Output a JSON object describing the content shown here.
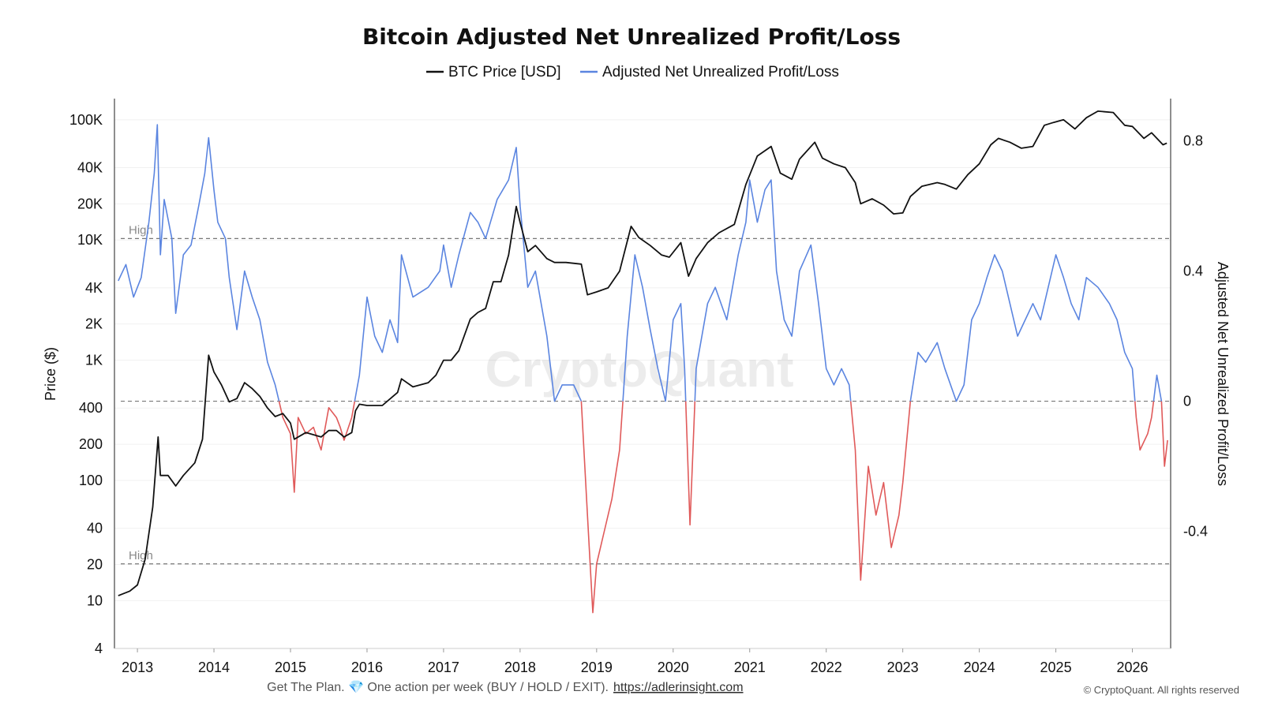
{
  "title": "Bitcoin Adjusted Net Unrealized Profit/Loss",
  "legend": [
    {
      "label": "BTC Price [USD]",
      "color": "#111111"
    },
    {
      "label": "Adjusted Net Unrealized Profit/Loss",
      "color": "#5b85e0"
    }
  ],
  "watermark": "CryptoQuant",
  "footer": {
    "text": "Get The Plan. 💎 One action per week (BUY / HOLD / EXIT).",
    "link": "https://adlerinsight.com",
    "copyright": "© CryptoQuant. All rights reserved"
  },
  "chart_data": {
    "type": "line",
    "title": "Bitcoin Adjusted Net Unrealized Profit/Loss",
    "x_range": [
      2012.7,
      2026.5
    ],
    "x_ticks": [
      "2013",
      "2014",
      "2015",
      "2016",
      "2017",
      "2018",
      "2019",
      "2020",
      "2021",
      "2022",
      "2023",
      "2024",
      "2025",
      "2026"
    ],
    "left_axis": {
      "label": "Price ($)",
      "scale": "log",
      "range": [
        4,
        150000
      ],
      "ticks": [
        {
          "value": 4,
          "label": "4"
        },
        {
          "value": 10,
          "label": "10"
        },
        {
          "value": 20,
          "label": "20"
        },
        {
          "value": 40,
          "label": "40"
        },
        {
          "value": 100,
          "label": "100"
        },
        {
          "value": 200,
          "label": "200"
        },
        {
          "value": 400,
          "label": "400"
        },
        {
          "value": 1000,
          "label": "1K"
        },
        {
          "value": 2000,
          "label": "2K"
        },
        {
          "value": 4000,
          "label": "4K"
        },
        {
          "value": 10000,
          "label": "10K"
        },
        {
          "value": 20000,
          "label": "20K"
        },
        {
          "value": 40000,
          "label": "40K"
        },
        {
          "value": 100000,
          "label": "100K"
        }
      ]
    },
    "right_axis": {
      "label": "Adjusted Net Unrealized Profit/Loss",
      "scale": "linear",
      "range": [
        -0.76,
        0.93
      ],
      "ticks": [
        {
          "value": 0.8,
          "label": "0.8"
        },
        {
          "value": 0.4,
          "label": "0.4"
        },
        {
          "value": 0,
          "label": "0"
        },
        {
          "value": -0.4,
          "label": "-0.4"
        }
      ]
    },
    "reference_lines": [
      {
        "value": 0.5,
        "label": "High",
        "style": "dashed"
      },
      {
        "value": 0,
        "label": "",
        "style": "dashed"
      },
      {
        "value": -0.5,
        "label": "High",
        "style": "dashed"
      }
    ],
    "grid": true,
    "legend_position": "top-center",
    "series": [
      {
        "name": "BTC Price [USD]",
        "axis": "left",
        "color": "#111111",
        "points": [
          [
            2012.75,
            11
          ],
          [
            2012.9,
            12
          ],
          [
            2013.0,
            13.5
          ],
          [
            2013.1,
            22
          ],
          [
            2013.2,
            60
          ],
          [
            2013.27,
            230
          ],
          [
            2013.3,
            110
          ],
          [
            2013.4,
            110
          ],
          [
            2013.5,
            90
          ],
          [
            2013.6,
            110
          ],
          [
            2013.75,
            140
          ],
          [
            2013.85,
            220
          ],
          [
            2013.93,
            1100
          ],
          [
            2014.0,
            800
          ],
          [
            2014.1,
            620
          ],
          [
            2014.2,
            450
          ],
          [
            2014.3,
            480
          ],
          [
            2014.4,
            650
          ],
          [
            2014.5,
            580
          ],
          [
            2014.6,
            500
          ],
          [
            2014.7,
            400
          ],
          [
            2014.8,
            340
          ],
          [
            2014.9,
            360
          ],
          [
            2015.0,
            300
          ],
          [
            2015.05,
            220
          ],
          [
            2015.2,
            250
          ],
          [
            2015.4,
            230
          ],
          [
            2015.5,
            260
          ],
          [
            2015.6,
            260
          ],
          [
            2015.7,
            230
          ],
          [
            2015.8,
            250
          ],
          [
            2015.85,
            380
          ],
          [
            2015.9,
            430
          ],
          [
            2016.0,
            420
          ],
          [
            2016.2,
            420
          ],
          [
            2016.4,
            540
          ],
          [
            2016.45,
            700
          ],
          [
            2016.6,
            600
          ],
          [
            2016.8,
            650
          ],
          [
            2016.9,
            750
          ],
          [
            2017.0,
            1000
          ],
          [
            2017.1,
            1000
          ],
          [
            2017.2,
            1200
          ],
          [
            2017.35,
            2200
          ],
          [
            2017.45,
            2500
          ],
          [
            2017.55,
            2700
          ],
          [
            2017.65,
            4500
          ],
          [
            2017.75,
            4500
          ],
          [
            2017.85,
            7500
          ],
          [
            2017.95,
            19000
          ],
          [
            2018.0,
            14000
          ],
          [
            2018.1,
            8000
          ],
          [
            2018.2,
            9000
          ],
          [
            2018.35,
            7000
          ],
          [
            2018.45,
            6500
          ],
          [
            2018.6,
            6500
          ],
          [
            2018.8,
            6300
          ],
          [
            2018.88,
            3500
          ],
          [
            2019.0,
            3700
          ],
          [
            2019.15,
            4000
          ],
          [
            2019.3,
            5500
          ],
          [
            2019.45,
            13000
          ],
          [
            2019.55,
            10500
          ],
          [
            2019.7,
            9000
          ],
          [
            2019.85,
            7500
          ],
          [
            2019.95,
            7200
          ],
          [
            2020.1,
            9500
          ],
          [
            2020.2,
            5000
          ],
          [
            2020.3,
            7000
          ],
          [
            2020.45,
            9500
          ],
          [
            2020.6,
            11500
          ],
          [
            2020.8,
            13500
          ],
          [
            2020.95,
            29000
          ],
          [
            2021.1,
            50000
          ],
          [
            2021.28,
            60000
          ],
          [
            2021.4,
            36000
          ],
          [
            2021.55,
            32000
          ],
          [
            2021.65,
            47000
          ],
          [
            2021.85,
            65000
          ],
          [
            2021.95,
            48000
          ],
          [
            2022.1,
            43000
          ],
          [
            2022.25,
            40000
          ],
          [
            2022.38,
            30000
          ],
          [
            2022.45,
            20000
          ],
          [
            2022.6,
            22000
          ],
          [
            2022.75,
            19500
          ],
          [
            2022.88,
            16500
          ],
          [
            2023.0,
            16800
          ],
          [
            2023.1,
            23000
          ],
          [
            2023.25,
            28000
          ],
          [
            2023.45,
            30000
          ],
          [
            2023.55,
            29000
          ],
          [
            2023.7,
            26500
          ],
          [
            2023.85,
            35000
          ],
          [
            2024.0,
            43000
          ],
          [
            2024.15,
            62000
          ],
          [
            2024.25,
            70000
          ],
          [
            2024.4,
            65000
          ],
          [
            2024.55,
            58000
          ],
          [
            2024.7,
            60000
          ],
          [
            2024.85,
            90000
          ],
          [
            2024.97,
            95000
          ],
          [
            2025.1,
            100000
          ],
          [
            2025.25,
            84000
          ],
          [
            2025.4,
            104000
          ],
          [
            2025.55,
            118000
          ],
          [
            2025.75,
            115000
          ],
          [
            2025.9,
            90000
          ],
          [
            2026.0,
            88000
          ],
          [
            2026.15,
            70000
          ],
          [
            2026.25,
            78000
          ],
          [
            2026.4,
            62000
          ],
          [
            2026.45,
            64000
          ]
        ]
      },
      {
        "name": "Adjusted Net Unrealized Profit/Loss",
        "axis": "right",
        "color": "#5b85e0",
        "negative_color": "#e05a5a",
        "points": [
          [
            2012.75,
            0.37
          ],
          [
            2012.85,
            0.42
          ],
          [
            2012.95,
            0.32
          ],
          [
            2013.05,
            0.38
          ],
          [
            2013.15,
            0.55
          ],
          [
            2013.22,
            0.7
          ],
          [
            2013.26,
            0.85
          ],
          [
            2013.3,
            0.45
          ],
          [
            2013.35,
            0.62
          ],
          [
            2013.45,
            0.5
          ],
          [
            2013.5,
            0.27
          ],
          [
            2013.6,
            0.45
          ],
          [
            2013.7,
            0.48
          ],
          [
            2013.8,
            0.6
          ],
          [
            2013.88,
            0.7
          ],
          [
            2013.93,
            0.81
          ],
          [
            2014.0,
            0.65
          ],
          [
            2014.05,
            0.55
          ],
          [
            2014.15,
            0.5
          ],
          [
            2014.2,
            0.38
          ],
          [
            2014.3,
            0.22
          ],
          [
            2014.4,
            0.4
          ],
          [
            2014.5,
            0.32
          ],
          [
            2014.6,
            0.25
          ],
          [
            2014.7,
            0.12
          ],
          [
            2014.8,
            0.05
          ],
          [
            2014.9,
            -0.05
          ],
          [
            2015.0,
            -0.1
          ],
          [
            2015.05,
            -0.28
          ],
          [
            2015.1,
            -0.05
          ],
          [
            2015.2,
            -0.1
          ],
          [
            2015.3,
            -0.08
          ],
          [
            2015.4,
            -0.15
          ],
          [
            2015.5,
            -0.02
          ],
          [
            2015.6,
            -0.05
          ],
          [
            2015.65,
            -0.08
          ],
          [
            2015.7,
            -0.12
          ],
          [
            2015.8,
            -0.05
          ],
          [
            2015.9,
            0.08
          ],
          [
            2016.0,
            0.32
          ],
          [
            2016.1,
            0.2
          ],
          [
            2016.2,
            0.15
          ],
          [
            2016.3,
            0.25
          ],
          [
            2016.4,
            0.18
          ],
          [
            2016.45,
            0.45
          ],
          [
            2016.6,
            0.32
          ],
          [
            2016.8,
            0.35
          ],
          [
            2016.95,
            0.4
          ],
          [
            2017.0,
            0.48
          ],
          [
            2017.1,
            0.35
          ],
          [
            2017.2,
            0.45
          ],
          [
            2017.35,
            0.58
          ],
          [
            2017.45,
            0.55
          ],
          [
            2017.55,
            0.5
          ],
          [
            2017.7,
            0.62
          ],
          [
            2017.85,
            0.68
          ],
          [
            2017.95,
            0.78
          ],
          [
            2018.0,
            0.6
          ],
          [
            2018.1,
            0.35
          ],
          [
            2018.2,
            0.4
          ],
          [
            2018.35,
            0.2
          ],
          [
            2018.45,
            0.0
          ],
          [
            2018.55,
            0.05
          ],
          [
            2018.7,
            0.05
          ],
          [
            2018.8,
            0.0
          ],
          [
            2018.88,
            -0.35
          ],
          [
            2018.95,
            -0.65
          ],
          [
            2019.0,
            -0.5
          ],
          [
            2019.1,
            -0.4
          ],
          [
            2019.2,
            -0.3
          ],
          [
            2019.3,
            -0.15
          ],
          [
            2019.4,
            0.2
          ],
          [
            2019.5,
            0.45
          ],
          [
            2019.6,
            0.35
          ],
          [
            2019.7,
            0.22
          ],
          [
            2019.8,
            0.1
          ],
          [
            2019.9,
            0.0
          ],
          [
            2020.0,
            0.25
          ],
          [
            2020.1,
            0.3
          ],
          [
            2020.15,
            0.1
          ],
          [
            2020.22,
            -0.38
          ],
          [
            2020.3,
            0.1
          ],
          [
            2020.45,
            0.3
          ],
          [
            2020.55,
            0.35
          ],
          [
            2020.7,
            0.25
          ],
          [
            2020.85,
            0.45
          ],
          [
            2020.95,
            0.55
          ],
          [
            2021.0,
            0.68
          ],
          [
            2021.1,
            0.55
          ],
          [
            2021.2,
            0.65
          ],
          [
            2021.28,
            0.68
          ],
          [
            2021.35,
            0.4
          ],
          [
            2021.45,
            0.25
          ],
          [
            2021.55,
            0.2
          ],
          [
            2021.65,
            0.4
          ],
          [
            2021.8,
            0.48
          ],
          [
            2021.9,
            0.3
          ],
          [
            2022.0,
            0.1
          ],
          [
            2022.1,
            0.05
          ],
          [
            2022.2,
            0.1
          ],
          [
            2022.3,
            0.05
          ],
          [
            2022.38,
            -0.15
          ],
          [
            2022.45,
            -0.55
          ],
          [
            2022.55,
            -0.2
          ],
          [
            2022.65,
            -0.35
          ],
          [
            2022.75,
            -0.25
          ],
          [
            2022.85,
            -0.45
          ],
          [
            2022.95,
            -0.35
          ],
          [
            2023.0,
            -0.25
          ],
          [
            2023.1,
            0.0
          ],
          [
            2023.2,
            0.15
          ],
          [
            2023.3,
            0.12
          ],
          [
            2023.45,
            0.18
          ],
          [
            2023.55,
            0.1
          ],
          [
            2023.7,
            0.0
          ],
          [
            2023.8,
            0.05
          ],
          [
            2023.9,
            0.25
          ],
          [
            2024.0,
            0.3
          ],
          [
            2024.1,
            0.38
          ],
          [
            2024.2,
            0.45
          ],
          [
            2024.3,
            0.4
          ],
          [
            2024.4,
            0.3
          ],
          [
            2024.5,
            0.2
          ],
          [
            2024.6,
            0.25
          ],
          [
            2024.7,
            0.3
          ],
          [
            2024.8,
            0.25
          ],
          [
            2024.9,
            0.35
          ],
          [
            2025.0,
            0.45
          ],
          [
            2025.1,
            0.38
          ],
          [
            2025.2,
            0.3
          ],
          [
            2025.3,
            0.25
          ],
          [
            2025.4,
            0.38
          ],
          [
            2025.55,
            0.35
          ],
          [
            2025.7,
            0.3
          ],
          [
            2025.8,
            0.25
          ],
          [
            2025.9,
            0.15
          ],
          [
            2026.0,
            0.1
          ],
          [
            2026.05,
            -0.05
          ],
          [
            2026.1,
            -0.15
          ],
          [
            2026.2,
            -0.1
          ],
          [
            2026.25,
            -0.05
          ],
          [
            2026.32,
            0.08
          ],
          [
            2026.38,
            0.0
          ],
          [
            2026.42,
            -0.2
          ],
          [
            2026.46,
            -0.12
          ]
        ]
      }
    ]
  }
}
